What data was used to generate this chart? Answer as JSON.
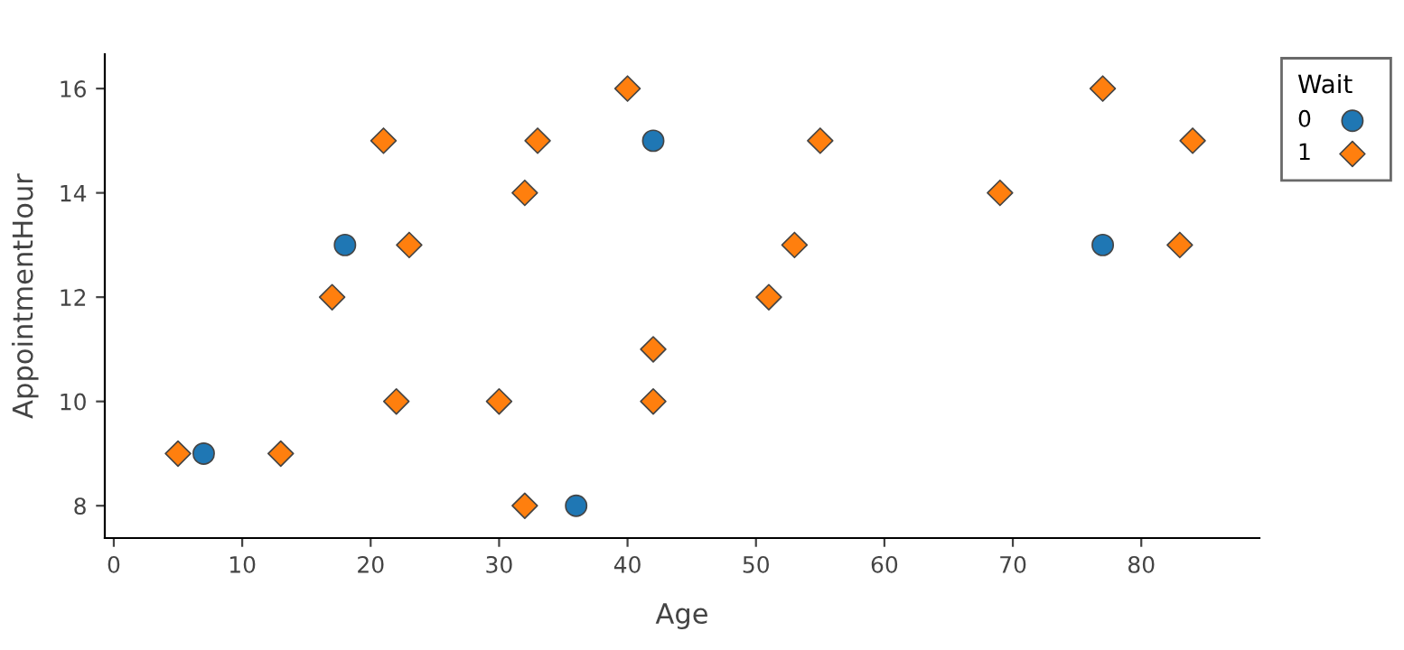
{
  "chart_data": {
    "type": "scatter",
    "xlabel": "Age",
    "ylabel": "AppointmentHour",
    "legend_title": "Wait",
    "legend": "top right",
    "grid": false,
    "xlim": [
      -0.7,
      89.2
    ],
    "xticks": [
      0,
      10,
      20,
      30,
      40,
      50,
      60,
      70,
      80
    ],
    "ylim": [
      7.38,
      16.66
    ],
    "yticks": [
      8,
      10,
      12,
      14,
      16
    ],
    "series": [
      {
        "name": "0",
        "color": "#1f77b4",
        "marker": "circle",
        "x": [
          7,
          18,
          36,
          42,
          77
        ],
        "values": [
          9,
          13,
          8,
          15,
          13
        ]
      },
      {
        "name": "1",
        "color": "#ff7f0e",
        "marker": "diamond",
        "x": [
          5,
          13,
          17,
          21,
          22,
          23,
          30,
          32,
          32,
          33,
          40,
          42,
          42,
          51,
          53,
          55,
          69,
          77,
          83,
          84
        ],
        "values": [
          9,
          9,
          12,
          15,
          10,
          13,
          10,
          14,
          8,
          15,
          16,
          11,
          10,
          12,
          13,
          15,
          14,
          16,
          13,
          15
        ]
      }
    ]
  }
}
